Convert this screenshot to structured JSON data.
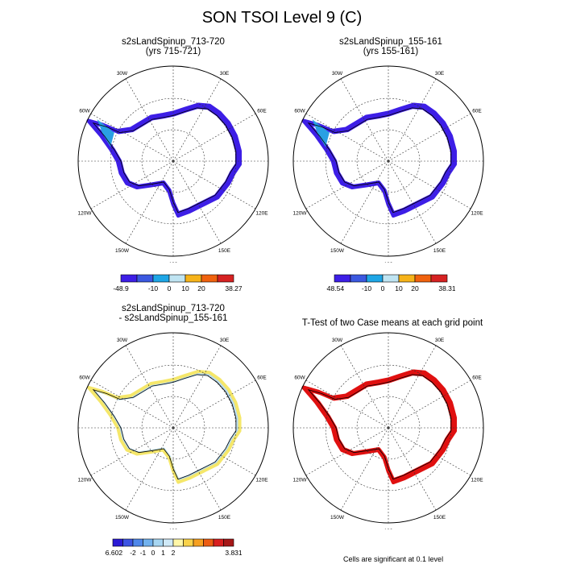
{
  "title": "SON TSOI Level 9 (C)",
  "panels": [
    {
      "id": "p1",
      "title_line1": "s2sLandSpinup_713-720",
      "title_line2": "(yrs 715-721)",
      "lon_labels": [
        "0",
        "30E",
        "60E",
        "90E",
        "120E",
        "150E",
        "180",
        "150W",
        "120W",
        "90W",
        "60W",
        "30W"
      ],
      "colorbar": {
        "colors": [
          "#3d1ee6",
          "#3b58e0",
          "#1ea6e6",
          "#bfe4f2",
          "#f6b31a",
          "#f0620e",
          "#d62222"
        ],
        "labels": [
          "-48.9",
          "-10",
          "0",
          "10",
          "20",
          "38.27"
        ]
      }
    },
    {
      "id": "p2",
      "title_line1": "s2sLandSpinup_155-161",
      "title_line2": "(yrs 155-161)",
      "lon_labels": [
        "0",
        "30E",
        "60E",
        "90E",
        "120E",
        "150E",
        "180",
        "150W",
        "120W",
        "90W",
        "60W",
        "30W"
      ],
      "colorbar": {
        "colors": [
          "#3d1ee6",
          "#3b58e0",
          "#1ea6e6",
          "#bfe4f2",
          "#f6b31a",
          "#f0620e",
          "#d62222"
        ],
        "labels": [
          "-48.54",
          "-10",
          "0",
          "10",
          "20",
          "38.31"
        ]
      }
    },
    {
      "id": "p3",
      "title_line1": "s2sLandSpinup_713-720",
      "title_line2": "- s2sLandSpinup_155-161",
      "lon_labels": [
        "",
        "30E",
        "60E",
        "90E",
        "120E",
        "150E",
        "180",
        "150W",
        "120W",
        "90W",
        "60W",
        "30W"
      ],
      "colorbar": {
        "colors": [
          "#2b1bd6",
          "#3d55e3",
          "#4f88ea",
          "#72b2ee",
          "#a7d6f2",
          "#cfe9f7",
          "#fff7a8",
          "#f9d24a",
          "#f6a020",
          "#ec5c12",
          "#d81f1f",
          "#a61818"
        ],
        "labels": [
          "-6.602",
          "-2",
          "-1",
          "0",
          "1",
          "2",
          "3.831"
        ]
      }
    },
    {
      "id": "p4",
      "title_line1": "T-Test of two Case means at each grid point",
      "title_line2": "",
      "lon_labels": [
        "",
        "30E",
        "60E",
        "90E",
        "120E",
        "150E",
        "180",
        "150W",
        "120W",
        "90W",
        "60W",
        "30W"
      ],
      "note": "Cells are significant at 0.1 level"
    }
  ],
  "map_colors": {
    "cold": "#3d1ee6",
    "cool": "#2aa0e3",
    "diff_light": "#b9dcf0",
    "diff_yellow": "#f5e76a",
    "ttest_red": "#e01010"
  }
}
